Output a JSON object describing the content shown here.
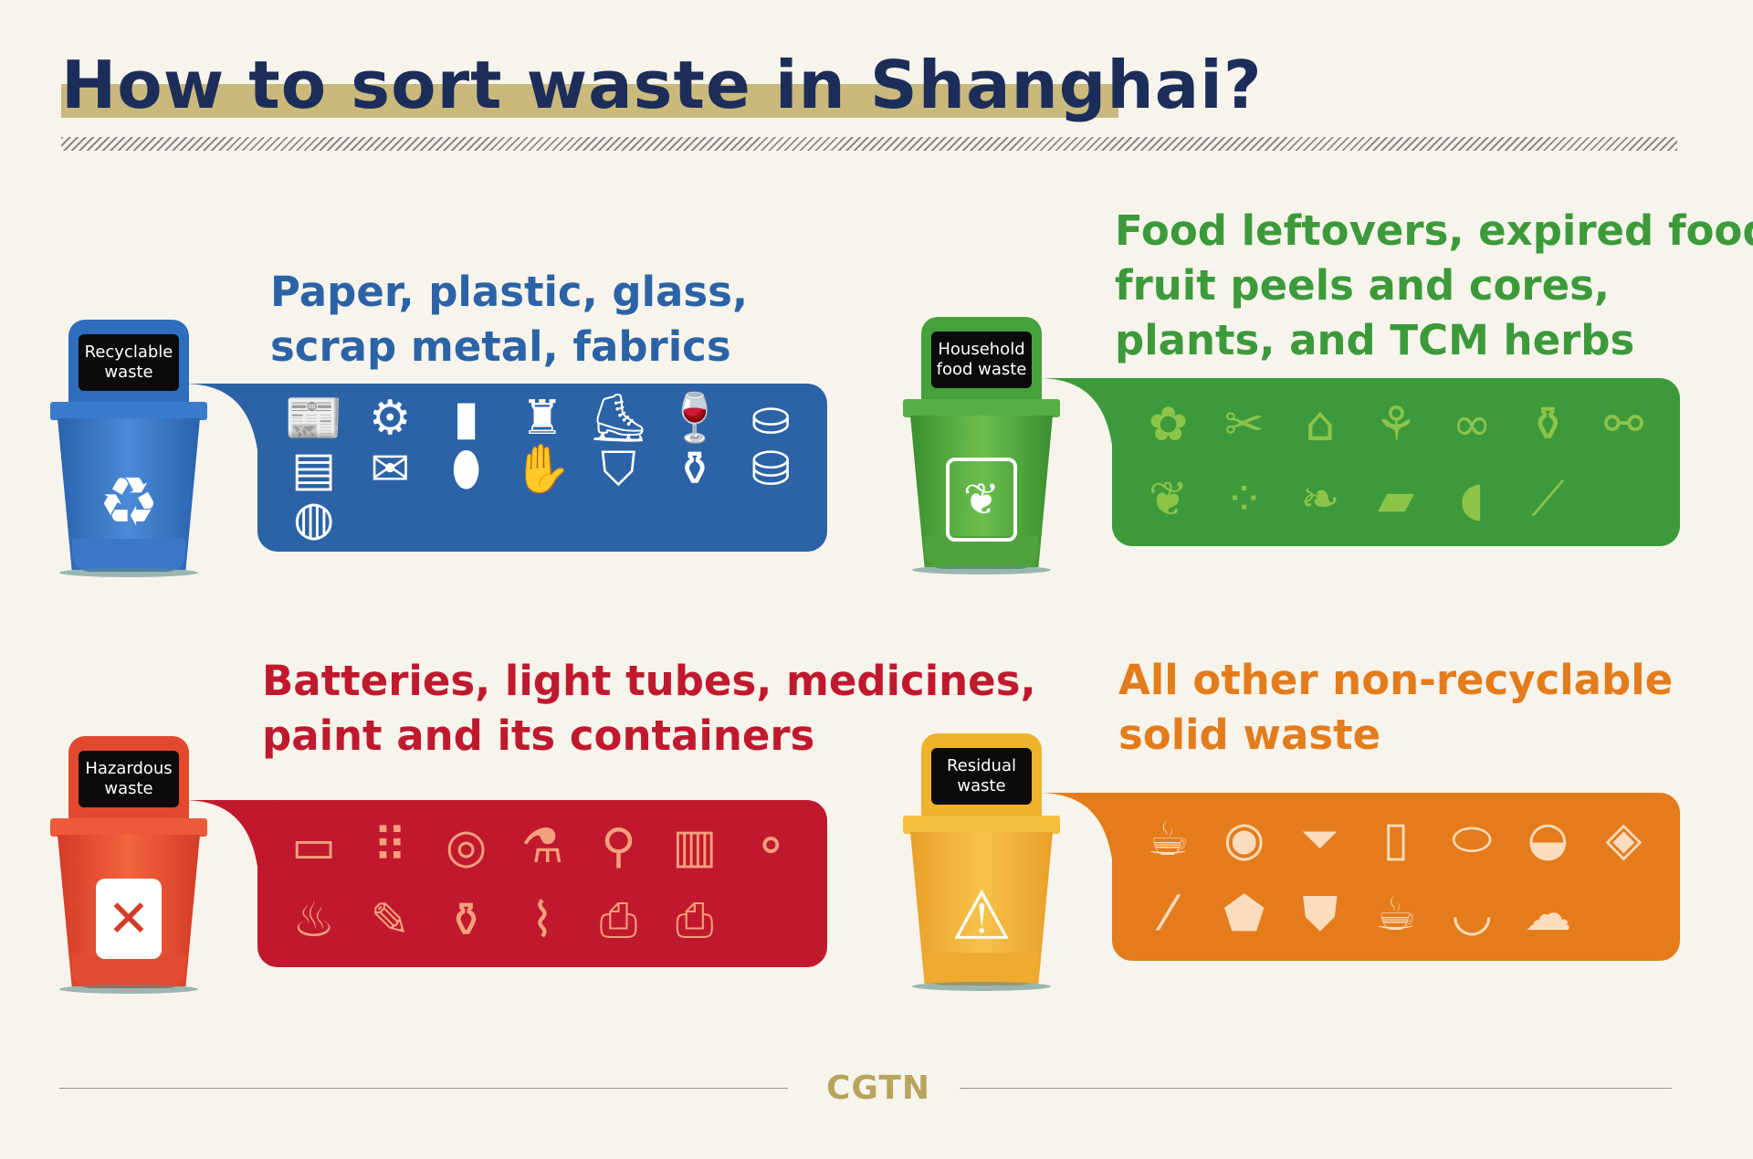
{
  "title": "How to sort waste in Shanghai?",
  "colors": {
    "title": "#1c2d5a",
    "highlight": "#c9b97c",
    "recyclable": "#2b63a6",
    "household": "#3c9a3a",
    "hazardous": "#c0192e",
    "residual": "#e47c1c",
    "logo": "#b9a45e"
  },
  "categories": {
    "recyclable": {
      "bin_label": [
        "Recyclable",
        "waste"
      ],
      "symbol": "recycle-icon",
      "description": [
        "Paper, plastic, glass,",
        "scrap metal, fabrics"
      ],
      "items": [
        "newspaper",
        "gear",
        "plastic-bottle",
        "coat",
        "sneakers",
        "wine-glasses",
        "backpack",
        "document",
        "book",
        "can",
        "gloves",
        "t-shirt",
        "wine-bottle",
        "tin-can",
        "cardboard-roll"
      ]
    },
    "household": {
      "bin_label": [
        "Household",
        "food waste"
      ],
      "symbol": "food-waste-icon",
      "description": [
        "Food leftovers, expired food,",
        "fruit peels and cores,",
        "plants, and TCM herbs"
      ],
      "items": [
        "apple-core",
        "fish-bone",
        "milk-carton",
        "potted-plant",
        "peanuts",
        "oil-bottle",
        "bone",
        "cabbage",
        "coffee-beans",
        "leaves",
        "pet-food-bag",
        "seeds",
        "branch"
      ]
    },
    "hazardous": {
      "bin_label": [
        "Hazardous",
        "waste"
      ],
      "symbol": "hazardous-icon",
      "description": [
        "Batteries, light tubes, medicines,",
        "paint and its containers"
      ],
      "items": [
        "battery",
        "pills-blister",
        "pill-case",
        "spray-can",
        "desk-lamp",
        "printer-cartridge",
        "light-bulb",
        "cfl-bulb",
        "lipstick",
        "nail-polish",
        "thermometer",
        "camera",
        "printer"
      ]
    },
    "residual": {
      "bin_label": [
        "Residual",
        "waste"
      ],
      "symbol": "residual-icon",
      "description": [
        "All other non-recyclable",
        "solid waste"
      ],
      "items": [
        "drink-cup",
        "toilet-paper",
        "underwear",
        "paper-towel",
        "sanitary-pad",
        "shell",
        "photo",
        "cigarette",
        "snack-bag",
        "plastic-bag",
        "broken-cup",
        "bowl",
        "dust"
      ]
    }
  },
  "footer": {
    "logo": "CGTN"
  }
}
